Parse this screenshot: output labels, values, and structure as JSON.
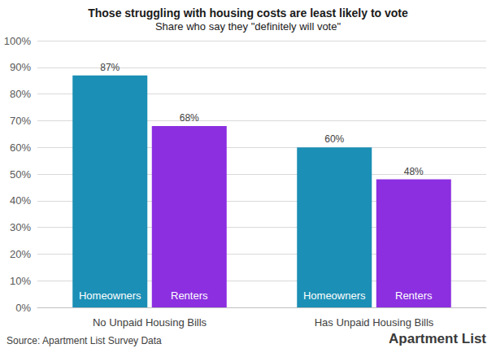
{
  "chart_data": {
    "type": "bar",
    "title": "Those struggling with housing costs are least likely to vote",
    "subtitle": "Share who say they \"definitely will vote\"",
    "categories": [
      "No Unpaid Housing Bills",
      "Has Unpaid Housing Bills"
    ],
    "series": [
      {
        "name": "Homeowners",
        "color": "#1b8fb5",
        "values": [
          87,
          60
        ],
        "value_labels": [
          "87%",
          "60%"
        ]
      },
      {
        "name": "Renters",
        "color": "#8b2fe0",
        "values": [
          68,
          48
        ],
        "value_labels": [
          "68%",
          "48%"
        ]
      }
    ],
    "ylim": [
      0,
      100
    ],
    "yticks": [
      {
        "value": 0,
        "label": "0%"
      },
      {
        "value": 10,
        "label": "10%"
      },
      {
        "value": 20,
        "label": "20%"
      },
      {
        "value": 30,
        "label": "30%"
      },
      {
        "value": 40,
        "label": "40%"
      },
      {
        "value": 50,
        "label": "50%"
      },
      {
        "value": 60,
        "label": "60%"
      },
      {
        "value": 70,
        "label": "70%"
      },
      {
        "value": 80,
        "label": "80%"
      },
      {
        "value": 90,
        "label": "90%"
      },
      {
        "value": 100,
        "label": "100%"
      }
    ],
    "grid": true,
    "data_labels": true,
    "source": "Source: Apartment List Survey Data",
    "brand": "Apartment List"
  }
}
